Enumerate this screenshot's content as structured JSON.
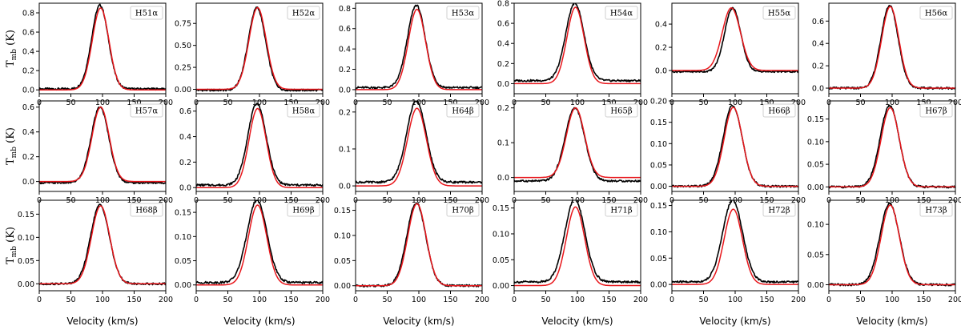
{
  "figure": {
    "xlabel": "Velocity (km/s)",
    "ylabel": "T",
    "ylabel_sub": "mb",
    "ylabel_unit": " (K)"
  },
  "colors": {
    "observed": "#000000",
    "fit": "#e8161b"
  },
  "chart_data": [
    {
      "type": "line",
      "title": "H51α",
      "xlim": [
        0,
        200
      ],
      "ylim": [
        -0.04,
        0.9
      ],
      "xticks": [
        "0",
        "50",
        "100",
        "150",
        "200"
      ],
      "yticks": [
        "0.0",
        "0.2",
        "0.4",
        "0.6",
        "0.8"
      ],
      "ytick_values": [
        0,
        0.2,
        0.4,
        0.6,
        0.8
      ],
      "series": [
        {
          "name": "observed",
          "peak": 0.87,
          "center": 96,
          "fwhm": 31,
          "baseline": 0.01
        },
        {
          "name": "fit",
          "peak": 0.85,
          "center": 97,
          "fwhm": 31,
          "baseline": 0.0
        }
      ]
    },
    {
      "type": "line",
      "title": "H52α",
      "xlim": [
        0,
        200
      ],
      "ylim": [
        -0.05,
        0.98
      ],
      "xticks": [
        "0",
        "50",
        "100",
        "150",
        "200"
      ],
      "yticks": [
        "0.00",
        "0.25",
        "0.50",
        "0.75"
      ],
      "ytick_values": [
        0,
        0.25,
        0.5,
        0.75
      ],
      "series": [
        {
          "name": "observed",
          "peak": 0.94,
          "center": 96,
          "fwhm": 32,
          "baseline": -0.01
        },
        {
          "name": "fit",
          "peak": 0.93,
          "center": 97,
          "fwhm": 32,
          "baseline": 0.0
        }
      ]
    },
    {
      "type": "line",
      "title": "H53α",
      "xlim": [
        0,
        200
      ],
      "ylim": [
        -0.04,
        0.85
      ],
      "xticks": [
        "0",
        "50",
        "100",
        "150",
        "200"
      ],
      "yticks": [
        "0.0",
        "0.2",
        "0.4",
        "0.6",
        "0.8"
      ],
      "ytick_values": [
        0,
        0.2,
        0.4,
        0.6,
        0.8
      ],
      "series": [
        {
          "name": "observed",
          "peak": 0.81,
          "center": 96,
          "fwhm": 33,
          "baseline": 0.02
        },
        {
          "name": "fit",
          "peak": 0.79,
          "center": 97,
          "fwhm": 32,
          "baseline": 0.0
        }
      ]
    },
    {
      "type": "line",
      "title": "H54α",
      "xlim": [
        0,
        200
      ],
      "ylim": [
        -0.1,
        0.8
      ],
      "xticks": [
        "0",
        "50",
        "100",
        "150",
        "200"
      ],
      "yticks": [
        "0.0",
        "0.2",
        "0.4",
        "0.6",
        "0.8"
      ],
      "ytick_values": [
        0,
        0.2,
        0.4,
        0.6,
        0.8
      ],
      "series": [
        {
          "name": "observed",
          "peak": 0.77,
          "center": 96,
          "fwhm": 34,
          "baseline": 0.03
        },
        {
          "name": "fit",
          "peak": 0.76,
          "center": 97,
          "fwhm": 32,
          "baseline": 0.0
        }
      ]
    },
    {
      "type": "line",
      "title": "H55α",
      "xlim": [
        0,
        200
      ],
      "ylim": [
        -0.2,
        0.58
      ],
      "xticks": [
        "0",
        "50",
        "100",
        "150",
        "200"
      ],
      "yticks": [
        "0.0",
        "0.2",
        "0.4"
      ],
      "ytick_values": [
        0,
        0.2,
        0.4
      ],
      "series": [
        {
          "name": "observed",
          "peak": 0.55,
          "center": 96,
          "fwhm": 30,
          "baseline": -0.01
        },
        {
          "name": "fit",
          "peak": 0.54,
          "center": 94,
          "fwhm": 34,
          "baseline": 0.0
        }
      ]
    },
    {
      "type": "line",
      "title": "H56α",
      "xlim": [
        0,
        200
      ],
      "ylim": [
        -0.05,
        0.76
      ],
      "xticks": [
        "0",
        "50",
        "100",
        "150",
        "200"
      ],
      "yticks": [
        "0.0",
        "0.2",
        "0.4",
        "0.6"
      ],
      "ytick_values": [
        0,
        0.2,
        0.4,
        0.6
      ],
      "series": [
        {
          "name": "observed",
          "peak": 0.74,
          "center": 96,
          "fwhm": 32,
          "baseline": 0.0
        },
        {
          "name": "fit",
          "peak": 0.73,
          "center": 97,
          "fwhm": 32,
          "baseline": 0.0
        }
      ]
    },
    {
      "type": "line",
      "title": "H57α",
      "xlim": [
        0,
        200
      ],
      "ylim": [
        -0.08,
        0.65
      ],
      "xticks": [
        "0",
        "50",
        "100",
        "150",
        "200"
      ],
      "yticks": [
        "0.0",
        "0.2",
        "0.4",
        "0.6"
      ],
      "ytick_values": [
        0,
        0.2,
        0.4,
        0.6
      ],
      "series": [
        {
          "name": "observed",
          "peak": 0.61,
          "center": 96,
          "fwhm": 33,
          "baseline": -0.01
        },
        {
          "name": "fit",
          "peak": 0.6,
          "center": 97,
          "fwhm": 32,
          "baseline": 0.0
        }
      ]
    },
    {
      "type": "line",
      "title": "H58α",
      "xlim": [
        0,
        200
      ],
      "ylim": [
        -0.03,
        0.68
      ],
      "xticks": [
        "0",
        "50",
        "100",
        "150",
        "200"
      ],
      "yticks": [
        "0.0",
        "0.2",
        "0.4",
        "0.6"
      ],
      "ytick_values": [
        0,
        0.2,
        0.4,
        0.6
      ],
      "series": [
        {
          "name": "observed",
          "peak": 0.64,
          "center": 96,
          "fwhm": 34,
          "baseline": 0.02
        },
        {
          "name": "fit",
          "peak": 0.62,
          "center": 97,
          "fwhm": 32,
          "baseline": 0.0
        }
      ]
    },
    {
      "type": "line",
      "title": "H64β",
      "xlim": [
        0,
        200
      ],
      "ylim": [
        -0.015,
        0.23
      ],
      "xticks": [
        "0",
        "50",
        "100",
        "150",
        "200"
      ],
      "yticks": [
        "0.0",
        "0.1",
        "0.2"
      ],
      "ytick_values": [
        0,
        0.1,
        0.2
      ],
      "series": [
        {
          "name": "observed",
          "peak": 0.22,
          "center": 96,
          "fwhm": 36,
          "baseline": 0.01
        },
        {
          "name": "fit",
          "peak": 0.21,
          "center": 97,
          "fwhm": 35,
          "baseline": 0.0
        }
      ]
    },
    {
      "type": "line",
      "title": "H65β",
      "xlim": [
        0,
        200
      ],
      "ylim": [
        -0.04,
        0.22
      ],
      "xticks": [
        "0",
        "50",
        "100",
        "150",
        "200"
      ],
      "yticks": [
        "0.0",
        "0.1",
        "0.2"
      ],
      "ytick_values": [
        0,
        0.1,
        0.2
      ],
      "series": [
        {
          "name": "observed",
          "peak": 0.21,
          "center": 96,
          "fwhm": 36,
          "baseline": -0.01
        },
        {
          "name": "fit",
          "peak": 0.2,
          "center": 97,
          "fwhm": 34,
          "baseline": 0.0
        }
      ]
    },
    {
      "type": "line",
      "title": "H66β",
      "xlim": [
        0,
        200
      ],
      "ylim": [
        -0.012,
        0.2
      ],
      "xticks": [
        "0",
        "50",
        "100",
        "150",
        "200"
      ],
      "yticks": [
        "0.00",
        "0.05",
        "0.10",
        "0.15",
        "0.20"
      ],
      "ytick_values": [
        0,
        0.05,
        0.1,
        0.15,
        0.2
      ],
      "series": [
        {
          "name": "observed",
          "peak": 0.19,
          "center": 96,
          "fwhm": 35,
          "baseline": 0.0
        },
        {
          "name": "fit",
          "peak": 0.185,
          "center": 97,
          "fwhm": 34,
          "baseline": 0.0
        }
      ]
    },
    {
      "type": "line",
      "title": "H67β",
      "xlim": [
        0,
        200
      ],
      "ylim": [
        -0.01,
        0.19
      ],
      "xticks": [
        "0",
        "50",
        "100",
        "150",
        "200"
      ],
      "yticks": [
        "0.00",
        "0.05",
        "0.10",
        "0.15"
      ],
      "ytick_values": [
        0,
        0.05,
        0.1,
        0.15
      ],
      "series": [
        {
          "name": "observed",
          "peak": 0.18,
          "center": 96,
          "fwhm": 35,
          "baseline": 0.0
        },
        {
          "name": "fit",
          "peak": 0.175,
          "center": 97,
          "fwhm": 34,
          "baseline": 0.0
        }
      ]
    },
    {
      "type": "line",
      "title": "H68β",
      "xlim": [
        0,
        200
      ],
      "ylim": [
        -0.015,
        0.18
      ],
      "xticks": [
        "0",
        "50",
        "100",
        "150",
        "200"
      ],
      "yticks": [
        "0.00",
        "0.05",
        "0.10",
        "0.15"
      ],
      "ytick_values": [
        0,
        0.05,
        0.1,
        0.15
      ],
      "series": [
        {
          "name": "observed",
          "peak": 0.17,
          "center": 96,
          "fwhm": 35,
          "baseline": 0.0
        },
        {
          "name": "fit",
          "peak": 0.168,
          "center": 97,
          "fwhm": 34,
          "baseline": 0.0
        }
      ]
    },
    {
      "type": "line",
      "title": "H69β",
      "xlim": [
        0,
        200
      ],
      "ylim": [
        -0.012,
        0.175
      ],
      "xticks": [
        "0",
        "50",
        "100",
        "150",
        "200"
      ],
      "yticks": [
        "0.00",
        "0.05",
        "0.10",
        "0.15"
      ],
      "ytick_values": [
        0,
        0.05,
        0.1,
        0.15
      ],
      "series": [
        {
          "name": "observed",
          "peak": 0.17,
          "center": 96,
          "fwhm": 37,
          "baseline": 0.005
        },
        {
          "name": "fit",
          "peak": 0.165,
          "center": 97,
          "fwhm": 34,
          "baseline": 0.0
        }
      ]
    },
    {
      "type": "line",
      "title": "H70β",
      "xlim": [
        0,
        200
      ],
      "ylim": [
        -0.01,
        0.17
      ],
      "xticks": [
        "0",
        "50",
        "100",
        "150",
        "200"
      ],
      "yticks": [
        "0.00",
        "0.05",
        "0.10",
        "0.15"
      ],
      "ytick_values": [
        0,
        0.05,
        0.1,
        0.15
      ],
      "series": [
        {
          "name": "observed",
          "peak": 0.165,
          "center": 96,
          "fwhm": 35,
          "baseline": 0.0
        },
        {
          "name": "fit",
          "peak": 0.163,
          "center": 97,
          "fwhm": 34,
          "baseline": 0.0
        }
      ]
    },
    {
      "type": "line",
      "title": "H71β",
      "xlim": [
        0,
        200
      ],
      "ylim": [
        -0.01,
        0.165
      ],
      "xticks": [
        "0",
        "50",
        "100",
        "150",
        "200"
      ],
      "yticks": [
        "0.00",
        "0.05",
        "0.10",
        "0.15"
      ],
      "ytick_values": [
        0,
        0.05,
        0.1,
        0.15
      ],
      "series": [
        {
          "name": "observed",
          "peak": 0.16,
          "center": 96,
          "fwhm": 37,
          "baseline": 0.007
        },
        {
          "name": "fit",
          "peak": 0.152,
          "center": 97,
          "fwhm": 34,
          "baseline": 0.0
        }
      ]
    },
    {
      "type": "line",
      "title": "H72β",
      "xlim": [
        0,
        200
      ],
      "ylim": [
        -0.012,
        0.16
      ],
      "xticks": [
        "0",
        "50",
        "100",
        "150",
        "200"
      ],
      "yticks": [
        "0.00",
        "0.05",
        "0.10",
        "0.15"
      ],
      "ytick_values": [
        0,
        0.05,
        0.1,
        0.15
      ],
      "series": [
        {
          "name": "observed",
          "peak": 0.155,
          "center": 96,
          "fwhm": 37,
          "baseline": 0.005
        },
        {
          "name": "fit",
          "peak": 0.143,
          "center": 97,
          "fwhm": 34,
          "baseline": 0.0
        }
      ]
    },
    {
      "type": "line",
      "title": "H73β",
      "xlim": [
        0,
        200
      ],
      "ylim": [
        -0.01,
        0.14
      ],
      "xticks": [
        "0",
        "50",
        "100",
        "150",
        "200"
      ],
      "yticks": [
        "0.00",
        "0.05",
        "0.10"
      ],
      "ytick_values": [
        0,
        0.05,
        0.1
      ],
      "series": [
        {
          "name": "observed",
          "peak": 0.135,
          "center": 96,
          "fwhm": 36,
          "baseline": 0.0
        },
        {
          "name": "fit",
          "peak": 0.132,
          "center": 97,
          "fwhm": 34,
          "baseline": 0.0
        }
      ]
    }
  ]
}
